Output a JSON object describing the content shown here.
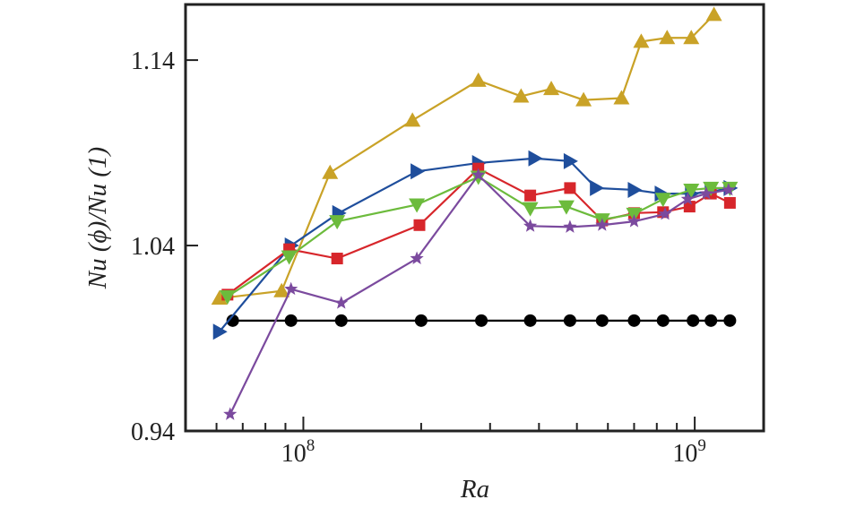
{
  "chart_data": {
    "type": "line",
    "title": "",
    "xlabel": "Ra",
    "ylabel": "Nu (ϕ)/Nu (1)",
    "xscale": "log",
    "xlim": [
      50000000,
      1500000000
    ],
    "ylim": [
      0.94,
      1.17
    ],
    "yticks": [
      0.94,
      1.04,
      1.14
    ],
    "ytick_labels": [
      "0.94",
      "1.04",
      "1.14"
    ],
    "xticks_major": [
      100000000,
      1000000000
    ],
    "xtick_labels": [
      {
        "base": "10",
        "exp": "8"
      },
      {
        "base": "10",
        "exp": "9"
      }
    ],
    "xticks_minor": [
      60000000,
      70000000,
      80000000,
      90000000,
      200000000,
      300000000,
      400000000,
      500000000,
      600000000,
      700000000,
      800000000,
      900000000
    ],
    "series": [
      {
        "name": "black-circle",
        "color": "#000000",
        "marker": "circle",
        "x": [
          66000000,
          93000000,
          125000000,
          200000000,
          285000000,
          380000000,
          480000000,
          580000000,
          700000000,
          830000000,
          990000000,
          1100000000,
          1230000000
        ],
        "y": [
          0.9995,
          0.9995,
          0.9995,
          0.9995,
          0.9995,
          0.9995,
          0.9995,
          0.9995,
          0.9995,
          0.9995,
          0.9995,
          0.9995,
          0.9995
        ]
      },
      {
        "name": "gold-triangle-up",
        "color": "#C9A227",
        "marker": "triangle-up",
        "x": [
          61000000,
          88000000,
          117000000,
          190000000,
          280000000,
          360000000,
          430000000,
          520000000,
          650000000,
          730000000,
          850000000,
          980000000,
          1120000000
        ],
        "y": [
          1.0115,
          1.0155,
          1.0793,
          1.1075,
          1.129,
          1.1205,
          1.1245,
          1.1185,
          1.1195,
          1.15,
          1.152,
          1.152,
          1.1645
        ]
      },
      {
        "name": "blue-triangle-right",
        "color": "#1F4E9C",
        "marker": "triangle-right",
        "x": [
          61000000,
          93000000,
          123000000,
          195000000,
          280000000,
          390000000,
          480000000,
          560000000,
          700000000,
          820000000,
          980000000,
          1100000000,
          1230000000
        ],
        "y": [
          0.9935,
          1.04,
          1.0575,
          1.08,
          1.0845,
          1.087,
          1.0855,
          1.071,
          1.07,
          1.068,
          1.068,
          1.069,
          1.071
        ]
      },
      {
        "name": "red-square",
        "color": "#D7262B",
        "marker": "square",
        "x": [
          64000000,
          92000000,
          122000000,
          198000000,
          280000000,
          380000000,
          480000000,
          580000000,
          700000000,
          830000000,
          970000000,
          1100000000,
          1230000000
        ],
        "y": [
          1.0135,
          1.038,
          1.033,
          1.051,
          1.0815,
          1.067,
          1.071,
          1.0535,
          1.0575,
          1.058,
          1.061,
          1.068,
          1.063
        ]
      },
      {
        "name": "green-triangle-down",
        "color": "#6CBB3C",
        "marker": "triangle-down",
        "x": [
          64000000,
          92000000,
          122000000,
          195000000,
          280000000,
          380000000,
          470000000,
          580000000,
          700000000,
          830000000,
          980000000,
          1100000000,
          1230000000
        ],
        "y": [
          1.0125,
          1.034,
          1.053,
          1.062,
          1.077,
          1.06,
          1.061,
          1.054,
          1.057,
          1.065,
          1.07,
          1.071,
          1.071
        ]
      },
      {
        "name": "purple-star",
        "color": "#7B4A9E",
        "marker": "star",
        "x": [
          65000000,
          93000000,
          125000000,
          195000000,
          280000000,
          380000000,
          480000000,
          580000000,
          700000000,
          840000000,
          960000000,
          1070000000,
          1220000000
        ],
        "y": [
          0.949,
          1.0165,
          1.009,
          1.033,
          1.078,
          1.0505,
          1.05,
          1.051,
          1.053,
          1.057,
          1.065,
          1.068,
          1.07
        ]
      }
    ]
  }
}
